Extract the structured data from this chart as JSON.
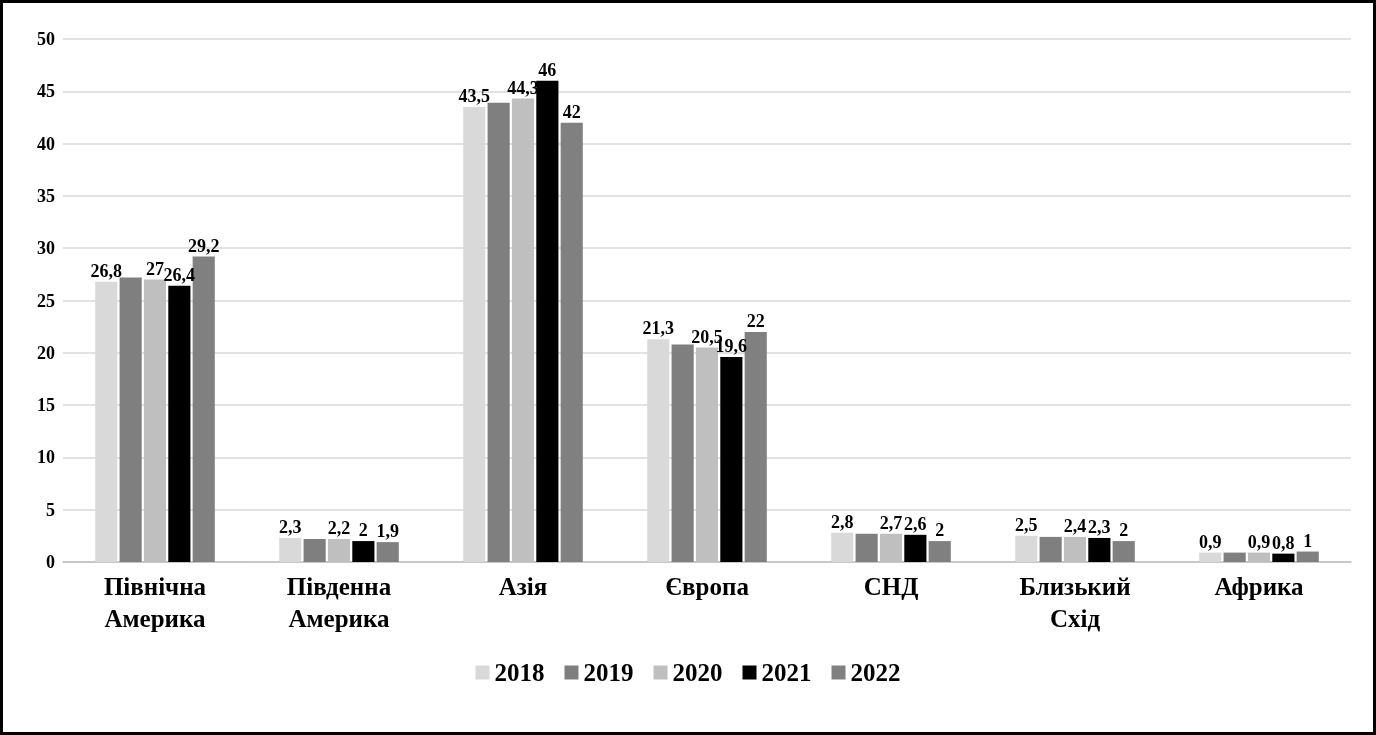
{
  "chart_data": {
    "type": "bar",
    "categories": [
      "Північна Америка",
      "Південна Америка",
      "Азія",
      "Європа",
      "СНД",
      "Близький Схід",
      "Африка"
    ],
    "series": [
      {
        "name": "2018",
        "color": "#d9d9d9",
        "values": [
          26.8,
          2.3,
          43.5,
          21.3,
          2.8,
          2.5,
          0.9
        ],
        "value_labels": [
          "26,8",
          "2,3",
          "43,5",
          "21,3",
          "2,8",
          "2,5",
          "0,9"
        ]
      },
      {
        "name": "2019",
        "color": "#7f7f7f",
        "values": [
          27.2,
          2.2,
          43.9,
          20.8,
          2.7,
          2.4,
          0.9
        ],
        "value_labels": [
          null,
          null,
          null,
          null,
          null,
          null,
          null
        ]
      },
      {
        "name": "2020",
        "color": "#bfbfbf",
        "values": [
          27,
          2.2,
          44.3,
          20.5,
          2.7,
          2.4,
          0.9
        ],
        "value_labels": [
          "27",
          "2,2",
          "44,3",
          "20,5",
          "2,7",
          "2,4",
          "0,9"
        ]
      },
      {
        "name": "2021",
        "color": "#000000",
        "values": [
          26.4,
          2,
          46,
          19.6,
          2.6,
          2.3,
          0.8
        ],
        "value_labels": [
          "26,4",
          "2",
          "46",
          "19,6",
          "2,6",
          "2,3",
          "0,8"
        ]
      },
      {
        "name": "2022",
        "color": "#808080",
        "values": [
          29.2,
          1.9,
          42,
          22,
          2,
          2,
          1
        ],
        "value_labels": [
          "29,2",
          "1,9",
          "42",
          "22",
          "2",
          "2",
          "1"
        ]
      }
    ],
    "ylim": [
      0,
      50
    ],
    "yticks": [
      0,
      5,
      10,
      15,
      20,
      25,
      30,
      35,
      40,
      45,
      50
    ],
    "grid": "y",
    "legend": "bottom"
  }
}
